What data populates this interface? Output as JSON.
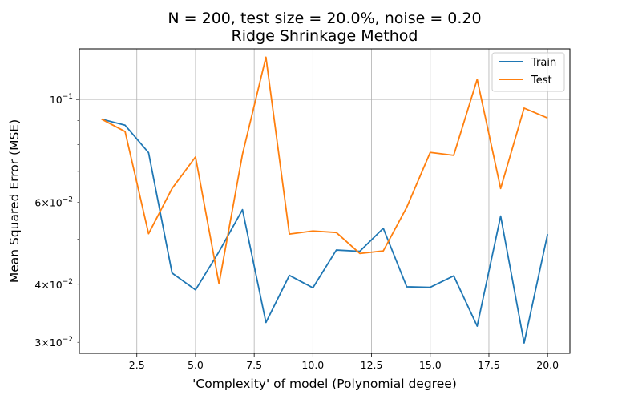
{
  "chart_data": {
    "type": "line",
    "title": "N = 200, test size = 20.0%, noise = 0.20",
    "subtitle": "Ridge Shrinkage Method",
    "xlabel": "'Complexity' of model (Polynomial degree)",
    "ylabel": "Mean Squared Error (MSE)",
    "x": [
      1,
      2,
      3,
      4,
      5,
      6,
      7,
      8,
      9,
      10,
      11,
      12,
      13,
      14,
      15,
      16,
      17,
      18,
      19,
      20
    ],
    "xlim": [
      0.05,
      20.95
    ],
    "ylim": [
      0.0284,
      0.1285
    ],
    "yscale": "log",
    "grid": true,
    "legend_position": "top-right",
    "x_ticks": [
      {
        "value": 2.5,
        "label": "2.5"
      },
      {
        "value": 5.0,
        "label": "5.0"
      },
      {
        "value": 7.5,
        "label": "7.5"
      },
      {
        "value": 10.0,
        "label": "10.0"
      },
      {
        "value": 12.5,
        "label": "12.5"
      },
      {
        "value": 15.0,
        "label": "15.0"
      },
      {
        "value": 17.5,
        "label": "17.5"
      },
      {
        "value": 20.0,
        "label": "20.0"
      }
    ],
    "y_major_ticks": [
      {
        "value": 0.1,
        "base": "10",
        "exp": "−1"
      }
    ],
    "y_minor_ticks": [
      {
        "value": 0.03,
        "mant": "3",
        "base": "10",
        "exp": "−2"
      },
      {
        "value": 0.04,
        "mant": "4",
        "base": "10",
        "exp": "−2"
      },
      {
        "value": 0.05,
        "mant": "",
        "base": "",
        "exp": ""
      },
      {
        "value": 0.06,
        "mant": "6",
        "base": "10",
        "exp": "−2"
      },
      {
        "value": 0.07,
        "mant": "",
        "base": "",
        "exp": ""
      },
      {
        "value": 0.08,
        "mant": "",
        "base": "",
        "exp": ""
      },
      {
        "value": 0.09,
        "mant": "",
        "base": "",
        "exp": ""
      }
    ],
    "series": [
      {
        "name": "Train",
        "color": "#1f77b4",
        "values": [
          0.0907,
          0.088,
          0.0768,
          0.0423,
          0.0389,
          0.047,
          0.0579,
          0.0331,
          0.0418,
          0.0393,
          0.0474,
          0.0471,
          0.0528,
          0.0395,
          0.0394,
          0.0417,
          0.0325,
          0.0561,
          0.0299,
          0.0513
        ]
      },
      {
        "name": "Test",
        "color": "#ff7f0e",
        "values": [
          0.0907,
          0.0853,
          0.0514,
          0.0643,
          0.0752,
          0.0401,
          0.0762,
          0.1233,
          0.0513,
          0.0521,
          0.0517,
          0.0466,
          0.0472,
          0.0586,
          0.0769,
          0.0758,
          0.1105,
          0.0643,
          0.0958,
          0.0912
        ]
      }
    ]
  }
}
